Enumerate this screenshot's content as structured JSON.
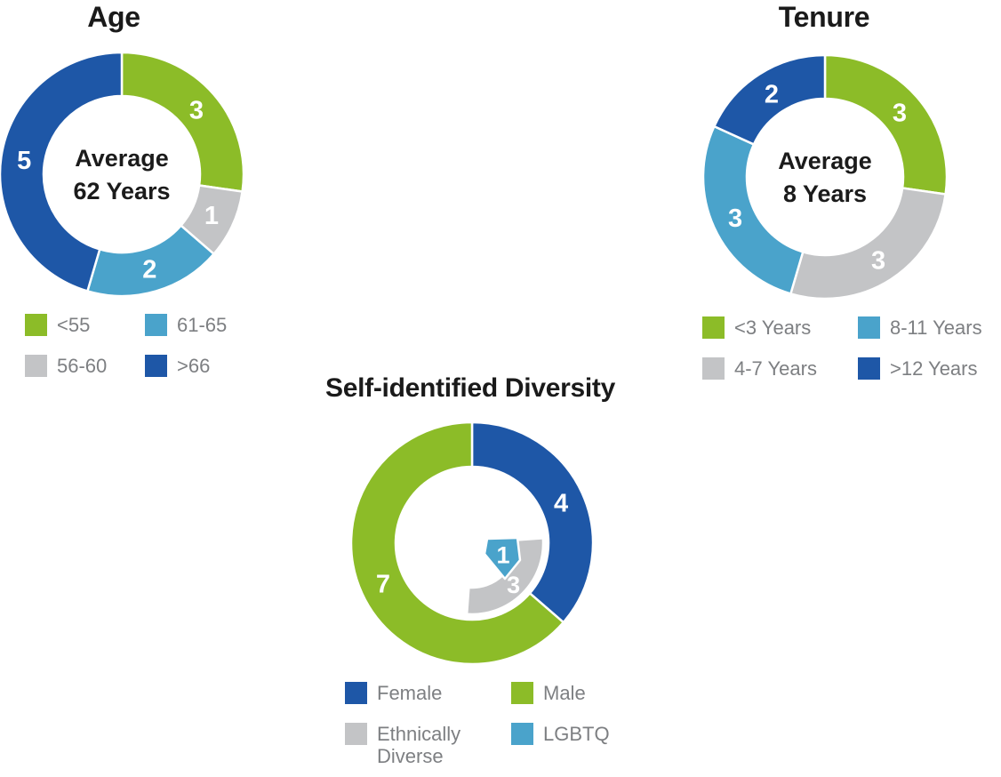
{
  "palette": {
    "green": "#8CBC28",
    "dark_blue": "#1E57A7",
    "light_blue": "#4AA3CB",
    "gray": "#C3C4C6",
    "title_text": "#1A1A1A",
    "legend_text": "#7D7F82",
    "segment_label_text": "#FFFFFF",
    "background": "#FFFFFF"
  },
  "chart_data": [
    {
      "type": "donut",
      "id": "age",
      "title": "Age",
      "center_text": {
        "line1": "Average",
        "line2": "62 Years"
      },
      "total": 11,
      "start_angle": 0,
      "segments": [
        {
          "label": "<55",
          "value": 3,
          "color": "green"
        },
        {
          "label": "56-60",
          "value": 1,
          "color": "gray"
        },
        {
          "label": "61-65",
          "value": 2,
          "color": "light_blue"
        },
        {
          "label": ">66",
          "value": 5,
          "color": "dark_blue"
        }
      ],
      "legend": [
        {
          "label": "<55",
          "color": "green"
        },
        {
          "label": "61-65",
          "color": "light_blue"
        },
        {
          "label": "56-60",
          "color": "gray"
        },
        {
          "label": ">66",
          "color": "dark_blue"
        }
      ]
    },
    {
      "type": "donut",
      "id": "tenure",
      "title": "Tenure",
      "center_text": {
        "line1": "Average",
        "line2": "8 Years"
      },
      "total": 11,
      "start_angle": 0,
      "segments": [
        {
          "label": "<3 Years",
          "value": 3,
          "color": "green"
        },
        {
          "label": "4-7 Years",
          "value": 3,
          "color": "gray"
        },
        {
          "label": "8-11 Years",
          "value": 3,
          "color": "light_blue"
        },
        {
          "label": ">12 Years",
          "value": 2,
          "color": "dark_blue"
        }
      ],
      "legend": [
        {
          "label": "<3 Years",
          "color": "green"
        },
        {
          "label": "8-11 Years",
          "color": "light_blue"
        },
        {
          "label": "4-7 Years",
          "color": "gray"
        },
        {
          "label": ">12 Years",
          "color": "dark_blue"
        }
      ]
    },
    {
      "type": "donut-with-inner-arc",
      "id": "diversity",
      "title": "Self-identified Diversity",
      "total": 11,
      "start_angle": 0,
      "segments": [
        {
          "label": "Female",
          "value": 4,
          "color": "dark_blue"
        },
        {
          "label": "Male",
          "value": 7,
          "color": "green"
        }
      ],
      "inner_segments": [
        {
          "label": "Ethnically Diverse",
          "value": 3,
          "color": "gray",
          "shape": "arc"
        },
        {
          "label": "LGBTQ",
          "value": 1,
          "color": "light_blue",
          "shape": "badge"
        }
      ],
      "legend": [
        {
          "label": "Female",
          "color": "dark_blue"
        },
        {
          "label": "Male",
          "color": "green"
        },
        {
          "label": "Ethnically Diverse",
          "color": "gray"
        },
        {
          "label": "LGBTQ",
          "color": "light_blue"
        }
      ]
    }
  ]
}
